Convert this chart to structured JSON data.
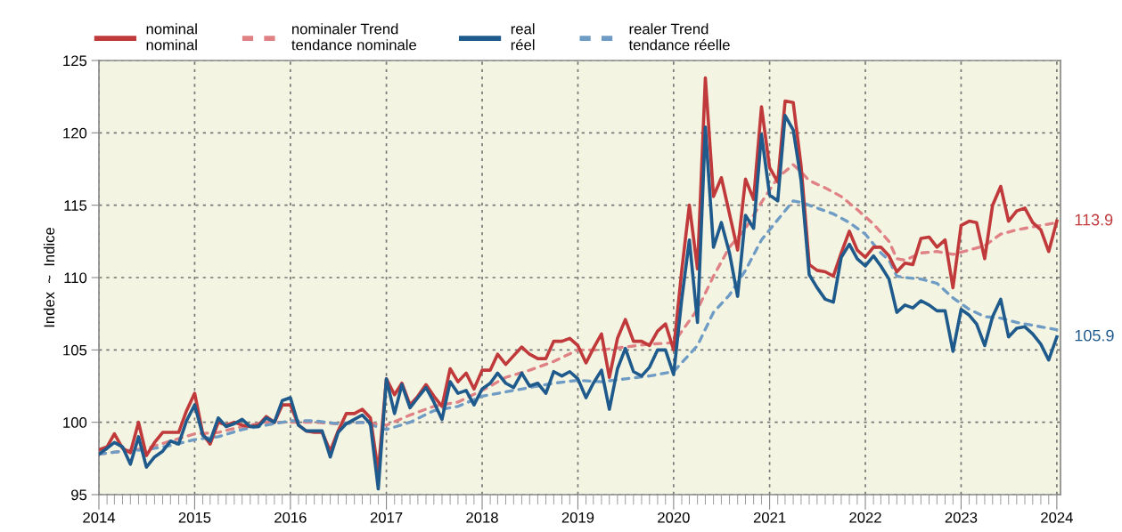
{
  "chart_data": {
    "type": "line",
    "ylabel": "Index  ~  Indice",
    "x": [
      "2014-01",
      "2014-02",
      "2014-03",
      "2014-04",
      "2014-05",
      "2014-06",
      "2014-07",
      "2014-08",
      "2014-09",
      "2014-10",
      "2014-11",
      "2014-12",
      "2015-01",
      "2015-02",
      "2015-03",
      "2015-04",
      "2015-05",
      "2015-06",
      "2015-07",
      "2015-08",
      "2015-09",
      "2015-10",
      "2015-11",
      "2015-12",
      "2016-01",
      "2016-02",
      "2016-03",
      "2016-04",
      "2016-05",
      "2016-06",
      "2016-07",
      "2016-08",
      "2016-09",
      "2016-10",
      "2016-11",
      "2016-12",
      "2017-01",
      "2017-02",
      "2017-03",
      "2017-04",
      "2017-05",
      "2017-06",
      "2017-07",
      "2017-08",
      "2017-09",
      "2017-10",
      "2017-11",
      "2017-12",
      "2018-01",
      "2018-02",
      "2018-03",
      "2018-04",
      "2018-05",
      "2018-06",
      "2018-07",
      "2018-08",
      "2018-09",
      "2018-10",
      "2018-11",
      "2018-12",
      "2019-01",
      "2019-02",
      "2019-03",
      "2019-04",
      "2019-05",
      "2019-06",
      "2019-07",
      "2019-08",
      "2019-09",
      "2019-10",
      "2019-11",
      "2019-12",
      "2020-01",
      "2020-02",
      "2020-03",
      "2020-04",
      "2020-05",
      "2020-06",
      "2020-07",
      "2020-08",
      "2020-09",
      "2020-10",
      "2020-11",
      "2020-12",
      "2021-01",
      "2021-02",
      "2021-03",
      "2021-04",
      "2021-05",
      "2021-06",
      "2021-07",
      "2021-08",
      "2021-09",
      "2021-10",
      "2021-11",
      "2021-12",
      "2022-01",
      "2022-02",
      "2022-03",
      "2022-04",
      "2022-05",
      "2022-06",
      "2022-07",
      "2022-08",
      "2022-09",
      "2022-10",
      "2022-11",
      "2022-12",
      "2023-01",
      "2023-02",
      "2023-03",
      "2023-04",
      "2023-05",
      "2023-06",
      "2023-07",
      "2023-08",
      "2023-09",
      "2023-10",
      "2023-11",
      "2023-12",
      "2024-01"
    ],
    "series": [
      {
        "name": "nominal\nnominal",
        "color": "#c0393b",
        "line_style": "solid",
        "values": [
          98.1,
          98.3,
          99.2,
          98.2,
          97.9,
          100.0,
          97.7,
          98.6,
          99.3,
          99.3,
          99.3,
          100.8,
          102.0,
          99.2,
          98.5,
          100.0,
          99.8,
          100.0,
          99.8,
          99.7,
          99.8,
          100.4,
          100.0,
          101.2,
          101.2,
          99.8,
          99.4,
          99.3,
          99.3,
          98.0,
          99.4,
          100.6,
          100.6,
          100.9,
          100.3,
          96.6,
          103.0,
          101.9,
          102.7,
          101.2,
          101.8,
          102.6,
          101.8,
          101.1,
          103.7,
          102.8,
          103.4,
          102.3,
          103.6,
          103.6,
          104.7,
          104.0,
          104.6,
          105.2,
          104.7,
          104.4,
          104.4,
          105.6,
          105.6,
          105.8,
          105.3,
          104.1,
          105.1,
          106.1,
          103.1,
          105.8,
          107.1,
          105.6,
          105.6,
          105.3,
          106.3,
          106.8,
          105.0,
          110.5,
          115.0,
          110.6,
          123.8,
          115.6,
          116.9,
          114.4,
          111.9,
          116.8,
          115.4,
          121.8,
          117.6,
          116.6,
          122.2,
          122.1,
          117.7,
          110.9,
          110.5,
          110.4,
          110.1,
          111.7,
          113.2,
          111.9,
          111.4,
          112.1,
          112.1,
          111.5,
          110.4,
          111.0,
          110.9,
          112.7,
          112.8,
          112.1,
          112.6,
          109.3,
          113.6,
          113.9,
          113.8,
          111.3,
          115.0,
          116.3,
          113.9,
          114.6,
          114.8,
          113.8,
          113.3,
          111.8,
          113.9
        ]
      },
      {
        "name": "nominaler Trend\ntendance nominale",
        "color": "#e08285",
        "line_style": "dashed",
        "x": [
          "2014-01",
          "2014-04",
          "2014-07",
          "2014-10",
          "2015-01",
          "2015-04",
          "2015-07",
          "2015-10",
          "2016-01",
          "2016-04",
          "2016-07",
          "2016-10",
          "2017-01",
          "2017-04",
          "2017-07",
          "2017-10",
          "2018-01",
          "2018-04",
          "2018-07",
          "2018-10",
          "2019-01",
          "2019-04",
          "2019-07",
          "2019-10",
          "2020-01",
          "2020-04",
          "2020-06",
          "2020-08",
          "2020-10",
          "2020-12",
          "2021-02",
          "2021-04",
          "2021-05",
          "2021-06",
          "2021-08",
          "2021-10",
          "2021-12",
          "2022-02",
          "2022-04",
          "2022-05",
          "2022-06",
          "2022-08",
          "2022-10",
          "2022-12",
          "2023-02",
          "2023-04",
          "2023-06",
          "2023-08",
          "2023-10",
          "2023-12",
          "2024-01"
        ],
        "values": [
          97.8,
          98.0,
          98.2,
          98.7,
          99.2,
          99.3,
          99.7,
          100.0,
          100.0,
          100.0,
          99.9,
          100.0,
          99.8,
          100.5,
          101.1,
          101.4,
          102.2,
          103.1,
          103.6,
          104.2,
          105.0,
          105.0,
          105.2,
          105.4,
          105.5,
          107.8,
          110.1,
          112.1,
          113.4,
          115.2,
          116.9,
          117.8,
          117.3,
          116.7,
          116.2,
          115.6,
          114.7,
          113.7,
          112.5,
          111.3,
          111.2,
          111.7,
          111.8,
          111.6,
          111.9,
          112.2,
          113.0,
          113.3,
          113.5,
          113.7,
          113.8
        ]
      },
      {
        "name": "real\nréel",
        "color": "#1f5a8c",
        "line_style": "solid",
        "values": [
          97.8,
          98.2,
          98.6,
          98.3,
          97.1,
          99.0,
          96.9,
          97.6,
          98.0,
          98.7,
          98.5,
          100.1,
          101.2,
          99.1,
          98.7,
          100.3,
          99.7,
          99.9,
          100.2,
          99.7,
          99.7,
          100.3,
          100.0,
          101.5,
          101.7,
          99.8,
          99.4,
          99.4,
          99.4,
          97.6,
          99.3,
          99.9,
          100.2,
          100.5,
          99.9,
          95.4,
          103.0,
          100.6,
          102.6,
          101.0,
          101.7,
          102.4,
          101.4,
          100.2,
          102.8,
          102.0,
          102.2,
          101.2,
          102.3,
          102.7,
          103.4,
          102.7,
          102.4,
          103.4,
          102.5,
          102.7,
          102.0,
          103.5,
          103.2,
          103.5,
          103.0,
          101.7,
          102.7,
          103.6,
          100.9,
          103.7,
          105.1,
          103.5,
          103.2,
          103.8,
          105.0,
          105.0,
          103.3,
          108.5,
          112.6,
          106.9,
          120.4,
          112.1,
          113.8,
          111.7,
          108.7,
          114.3,
          113.4,
          119.9,
          115.7,
          115.3,
          121.2,
          120.2,
          116.7,
          110.2,
          109.3,
          108.5,
          108.3,
          111.4,
          112.3,
          111.3,
          110.8,
          111.5,
          110.8,
          109.9,
          107.6,
          108.1,
          107.9,
          108.4,
          108.1,
          107.7,
          107.7,
          104.9,
          107.8,
          107.4,
          106.8,
          105.3,
          107.3,
          108.5,
          105.9,
          106.5,
          106.6,
          106.1,
          105.4,
          104.3,
          105.9
        ]
      },
      {
        "name": "realer Trend\ntendance réelle",
        "color": "#6f9cc4",
        "line_style": "dashed",
        "x": [
          "2014-01",
          "2014-04",
          "2014-07",
          "2014-10",
          "2015-01",
          "2015-04",
          "2015-07",
          "2015-10",
          "2016-01",
          "2016-04",
          "2016-07",
          "2016-10",
          "2017-01",
          "2017-04",
          "2017-07",
          "2017-10",
          "2018-01",
          "2018-04",
          "2018-07",
          "2018-10",
          "2019-01",
          "2019-04",
          "2019-07",
          "2019-10",
          "2020-01",
          "2020-04",
          "2020-06",
          "2020-08",
          "2020-10",
          "2020-12",
          "2021-02",
          "2021-04",
          "2021-05",
          "2021-07",
          "2021-09",
          "2021-11",
          "2022-01",
          "2022-03",
          "2022-04",
          "2022-05",
          "2022-06",
          "2022-08",
          "2022-10",
          "2022-12",
          "2023-02",
          "2023-04",
          "2023-06",
          "2023-08",
          "2023-10",
          "2023-12",
          "2024-01"
        ],
        "values": [
          97.8,
          98.0,
          98.1,
          98.4,
          98.8,
          99.0,
          99.5,
          99.8,
          100.1,
          100.1,
          99.9,
          100.0,
          99.5,
          100.0,
          100.8,
          101.1,
          101.8,
          102.1,
          102.4,
          102.7,
          102.9,
          102.8,
          103.0,
          103.2,
          103.5,
          105.3,
          107.6,
          108.8,
          110.5,
          112.6,
          114.0,
          115.3,
          115.2,
          114.8,
          114.4,
          113.8,
          113.0,
          111.7,
          111.2,
          110.1,
          110.0,
          109.9,
          109.6,
          108.6,
          107.8,
          107.3,
          107.2,
          106.9,
          106.7,
          106.5,
          106.4
        ]
      }
    ],
    "annotations": [
      {
        "text": "113.9",
        "x": "2024-01",
        "y": 113.9
      },
      {
        "text": "105.9",
        "x": "2024-01",
        "y": 105.9
      }
    ],
    "xlim": [
      "2014-01-01",
      "2024-01-15"
    ],
    "xticks": [
      {
        "value": "2014-01-01",
        "label": "2014"
      },
      {
        "value": "2015-01-01",
        "label": "2015"
      },
      {
        "value": "2016-01-01",
        "label": "2016"
      },
      {
        "value": "2017-01-01",
        "label": "2017"
      },
      {
        "value": "2018-01-01",
        "label": "2018"
      },
      {
        "value": "2019-01-01",
        "label": "2019"
      },
      {
        "value": "2020-01-01",
        "label": "2020"
      },
      {
        "value": "2021-01-01",
        "label": "2021"
      },
      {
        "value": "2022-01-01",
        "label": "2022"
      },
      {
        "value": "2023-01-01",
        "label": "2023"
      },
      {
        "value": "2024-01-01",
        "label": "2024"
      }
    ],
    "ylim": [
      95,
      125
    ],
    "yticks": [
      95,
      100,
      105,
      110,
      115,
      120,
      125
    ],
    "grid": true,
    "legend": "top",
    "marker": "none"
  }
}
